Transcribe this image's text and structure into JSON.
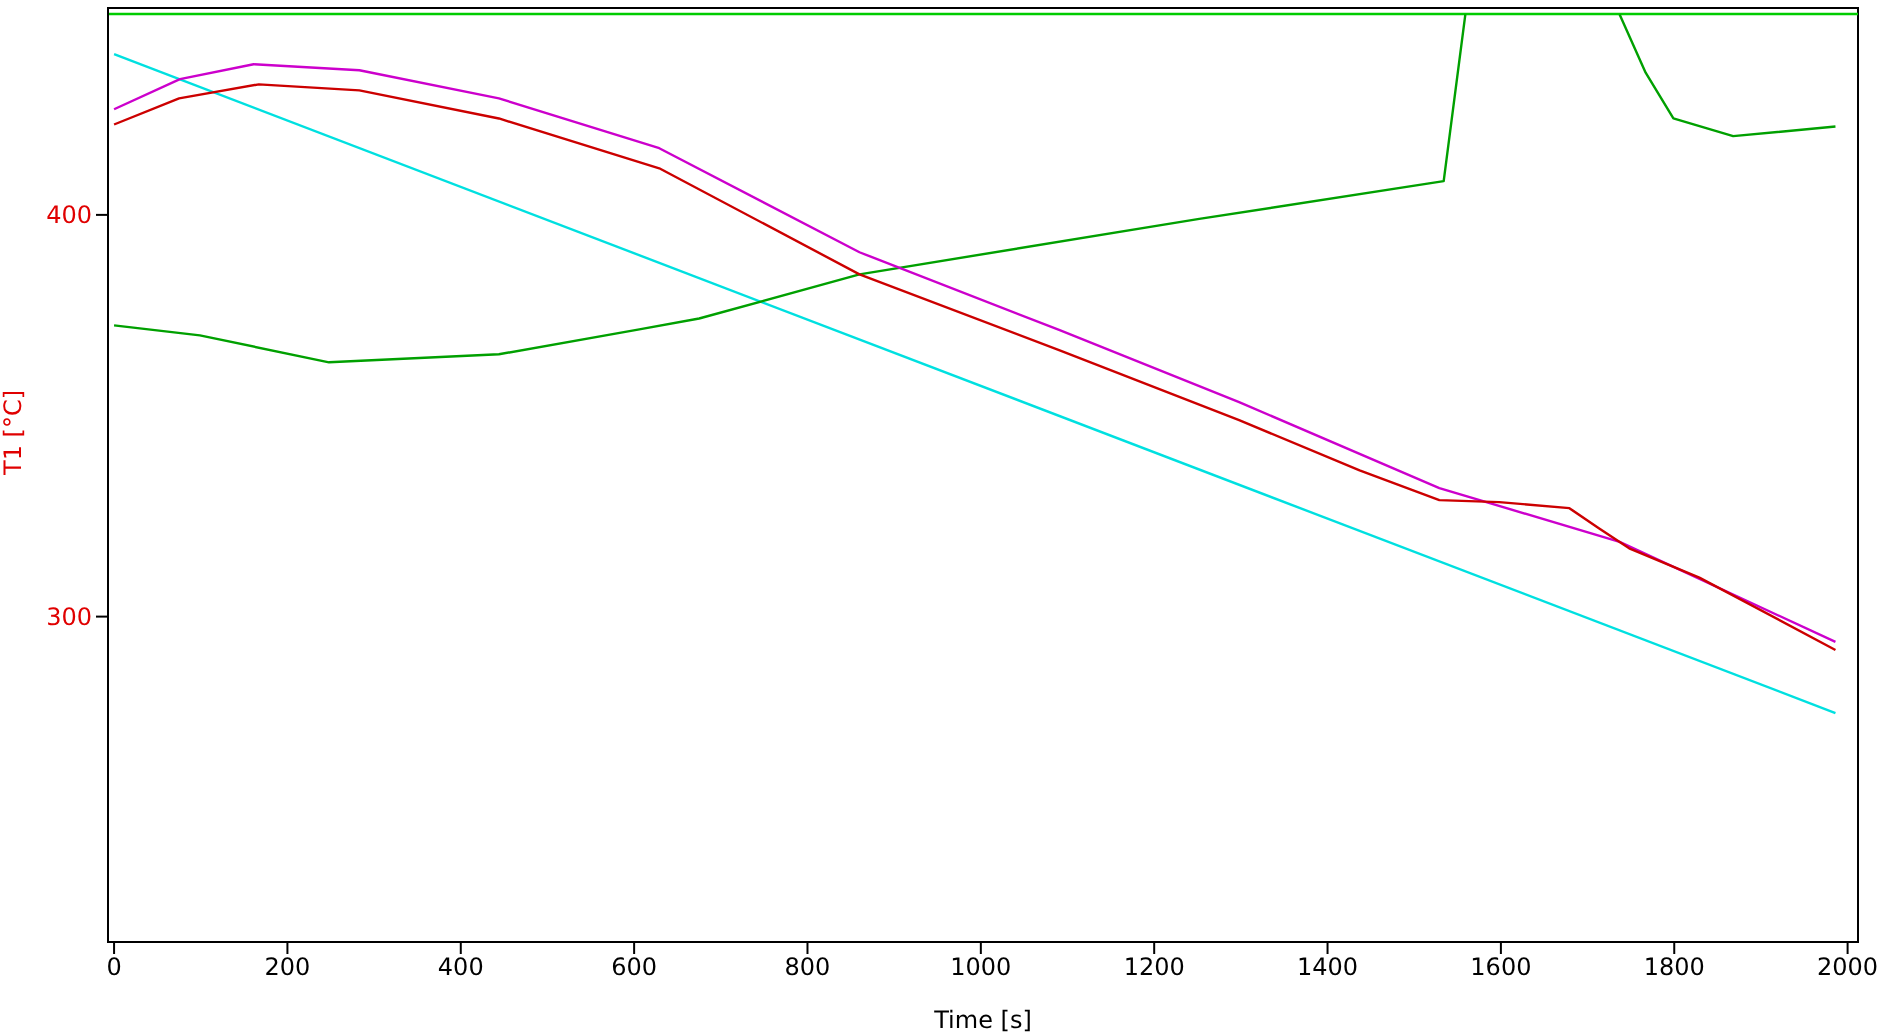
{
  "chart_data": {
    "type": "line",
    "xlabel": "Time [s]",
    "ylabel": "T1  [°C]",
    "xlim": [
      -7,
      2012
    ],
    "ylim": [
      219,
      451.5
    ],
    "xticks": [
      0,
      200,
      400,
      600,
      800,
      1000,
      1200,
      1400,
      1600,
      1800,
      2000
    ],
    "yticks": [
      300,
      400
    ],
    "marker": "none",
    "line_style": "solid",
    "ref_lines": [
      {
        "axis": "y",
        "value": 450,
        "color": "#00cc00"
      }
    ],
    "series": [
      {
        "color": "#00e0e0",
        "x": [
          0,
          1986
        ],
        "values": [
          440,
          276
        ]
      },
      {
        "color": "#00a000",
        "x": [
          0,
          99,
          248,
          444,
          606,
          675,
          860,
          1252,
          1534,
          1559,
          1600,
          1737,
          1767,
          1799,
          1868,
          1986
        ],
        "values": [
          372.5,
          370,
          363.3,
          365.3,
          371.5,
          374.2,
          385.2,
          399,
          408.4,
          449.9,
          null,
          449.9,
          435.4,
          424,
          419.6,
          422
        ]
      },
      {
        "color": "#cc00cc",
        "x": [
          0,
          76,
          161,
          283,
          444,
          629,
          860,
          1091,
          1298,
          1529,
          1737,
          1986
        ],
        "values": [
          426.3,
          433.8,
          437.5,
          436,
          429,
          416.6,
          390.7,
          371.3,
          353.4,
          332,
          318.6,
          293.7
        ]
      },
      {
        "color": "#cc0000",
        "x": [
          0,
          75,
          167,
          283,
          444,
          629,
          860,
          1091,
          1298,
          1437,
          1529,
          1598,
          1679,
          1713,
          1748,
          1829,
          1986
        ],
        "values": [
          422.5,
          429,
          432.5,
          431,
          424,
          411.6,
          385.2,
          366.3,
          348.9,
          336.4,
          329,
          328.5,
          327,
          322,
          317,
          309.7,
          291.7
        ]
      }
    ]
  }
}
